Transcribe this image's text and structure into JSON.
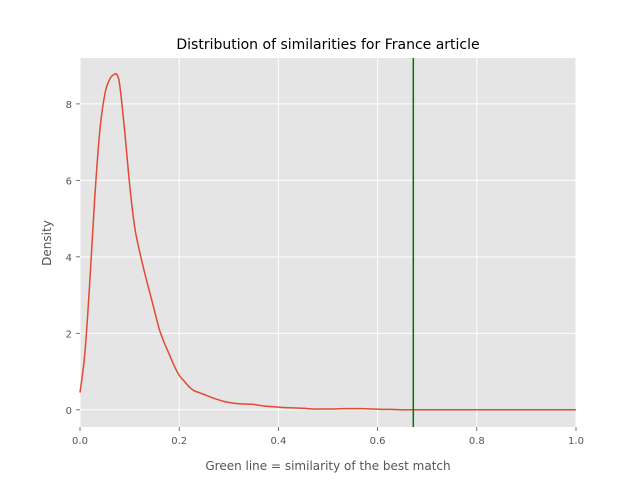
{
  "chart_data": {
    "type": "line",
    "title": "Distribution of similarities for France article",
    "xlabel": "Green line = similarity of the best match",
    "ylabel": "Density",
    "xlim": [
      0.0,
      1.0
    ],
    "ylim": [
      -0.45,
      9.2
    ],
    "xticks": [
      0.0,
      0.2,
      0.4,
      0.6,
      0.8,
      1.0
    ],
    "xtick_labels": [
      "0.0",
      "0.2",
      "0.4",
      "0.6",
      "0.8",
      "1.0"
    ],
    "yticks": [
      0,
      2,
      4,
      6,
      8
    ],
    "ytick_labels": [
      "0",
      "2",
      "4",
      "6",
      "8"
    ],
    "grid": true,
    "background": "#e5e5e5",
    "series": [
      {
        "color": "#e24a33",
        "x": [
          0.0,
          0.01,
          0.02,
          0.03,
          0.04,
          0.05,
          0.06,
          0.07,
          0.075,
          0.08,
          0.09,
          0.1,
          0.11,
          0.12,
          0.13,
          0.14,
          0.15,
          0.16,
          0.17,
          0.18,
          0.19,
          0.2,
          0.21,
          0.22,
          0.23,
          0.24,
          0.25,
          0.27,
          0.29,
          0.31,
          0.33,
          0.35,
          0.37,
          0.39,
          0.41,
          0.43,
          0.45,
          0.47,
          0.49,
          0.51,
          0.53,
          0.55,
          0.57,
          0.59,
          0.61,
          0.63,
          0.65,
          0.67,
          0.69,
          0.71,
          0.75,
          0.8,
          0.9,
          1.0
        ],
        "y": [
          0.45,
          1.5,
          3.4,
          5.6,
          7.3,
          8.25,
          8.65,
          8.78,
          8.75,
          8.5,
          7.3,
          5.9,
          4.8,
          4.15,
          3.6,
          3.1,
          2.6,
          2.1,
          1.75,
          1.45,
          1.15,
          0.9,
          0.75,
          0.6,
          0.5,
          0.45,
          0.4,
          0.3,
          0.22,
          0.17,
          0.15,
          0.14,
          0.1,
          0.08,
          0.06,
          0.05,
          0.04,
          0.02,
          0.02,
          0.02,
          0.03,
          0.03,
          0.03,
          0.02,
          0.01,
          0.01,
          0.0,
          0.0,
          0.0,
          0.0,
          0.0,
          0.0,
          0.0,
          0.0
        ]
      }
    ],
    "vline": {
      "x": 0.672,
      "color": "#007700"
    }
  }
}
